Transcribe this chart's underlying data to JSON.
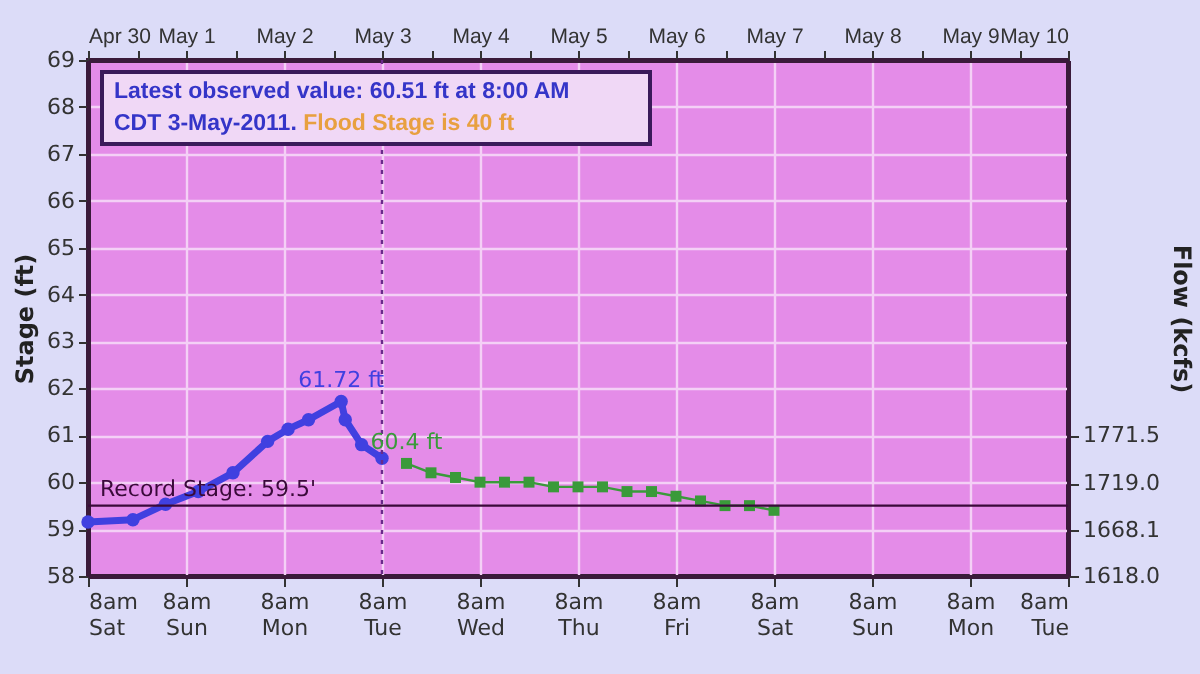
{
  "chart_data": {
    "type": "line",
    "xlabel": null,
    "ylabel": "Stage (ft)",
    "y2label": "Flow (kcfs)",
    "annotations": [
      "Latest observed value: 60.51 ft at 8:00 AM",
      "CDT 3-May-2011.",
      "Flood Stage is 40 ft",
      {
        "text": "61.72 ft",
        "x": "2011-05-02T22:00",
        "y": 61.72
      },
      {
        "text": "60.4 ft",
        "x": "2011-05-03T14:00",
        "y": 60.4
      }
    ],
    "series": [
      {
        "type": "line",
        "color": "#4040e0",
        "marker": "circle",
        "x": [
          "2011-04-30T08:00",
          "2011-04-30T19:00",
          "2011-05-01T03:00",
          "2011-05-01T11:00",
          "2011-05-01T19:30",
          "2011-05-02T04:00",
          "2011-05-02T09:00",
          "2011-05-02T14:00",
          "2011-05-02T22:00",
          "2011-05-02T23:00",
          "2011-05-03T03:00",
          "2011-05-03T08:00"
        ],
        "values": [
          59.15,
          59.2,
          59.53,
          59.8,
          60.2,
          60.87,
          61.13,
          61.33,
          61.72,
          61.33,
          60.8,
          60.51
        ]
      },
      {
        "type": "line",
        "color": "#3a9a3a",
        "marker": "square",
        "x": [
          "2011-05-03T14:00",
          "2011-05-03T20:00",
          "2011-05-04T02:00",
          "2011-05-04T08:00",
          "2011-05-04T14:00",
          "2011-05-04T20:00",
          "2011-05-05T02:00",
          "2011-05-05T08:00",
          "2011-05-05T14:00",
          "2011-05-05T20:00",
          "2011-05-06T02:00",
          "2011-05-06T08:00",
          "2011-05-06T14:00",
          "2011-05-06T20:00",
          "2011-05-07T02:00",
          "2011-05-07T08:00"
        ],
        "values": [
          60.4,
          60.2,
          60.1,
          60.0,
          60.0,
          60.0,
          59.9,
          59.9,
          59.9,
          59.8,
          59.8,
          59.7,
          59.6,
          59.5,
          59.5,
          59.4
        ]
      }
    ],
    "xlim": [
      "2011-04-30T08:00",
      "2011-05-10T08:00"
    ],
    "xticks": [
      {
        "value": "2011-04-30T08:00",
        "label": "8am\nSat"
      },
      {
        "value": "2011-04-30T20:00",
        "label": null
      },
      {
        "value": "2011-05-01T08:00",
        "label": "8am\nSun"
      },
      {
        "value": "2011-05-01T20:00",
        "label": null
      },
      {
        "value": "2011-05-02T08:00",
        "label": "8am\nMon"
      },
      {
        "value": "2011-05-02T20:00",
        "label": null
      },
      {
        "value": "2011-05-03T08:00",
        "label": "8am\nTue"
      },
      {
        "value": "2011-05-03T20:00",
        "label": null
      },
      {
        "value": "2011-05-04T08:00",
        "label": "8am\nWed"
      },
      {
        "value": "2011-05-04T20:00",
        "label": null
      },
      {
        "value": "2011-05-05T08:00",
        "label": "8am\nThu"
      },
      {
        "value": "2011-05-05T20:00",
        "label": null
      },
      {
        "value": "2011-05-06T08:00",
        "label": "8am\nFri"
      },
      {
        "value": "2011-05-06T20:00",
        "label": null
      },
      {
        "value": "2011-05-07T08:00",
        "label": "8am\nSat"
      },
      {
        "value": "2011-05-07T20:00",
        "label": null
      },
      {
        "value": "2011-05-08T08:00",
        "label": "8am\nSun"
      },
      {
        "value": "2011-05-08T20:00",
        "label": null
      },
      {
        "value": "2011-05-09T08:00",
        "label": "8am\nMon"
      },
      {
        "value": "2011-05-09T20:00",
        "label": null
      },
      {
        "value": "2011-05-10T08:00",
        "label": "8am\nTue"
      }
    ],
    "x2lim": [
      "2011-04-30T08:00",
      "2011-05-10T08:00"
    ],
    "x2ticks": [
      {
        "value": "2011-04-30T08:00",
        "label": "Apr 30"
      },
      {
        "value": "2011-04-30T20:00",
        "label": null
      },
      {
        "value": "2011-05-01T08:00",
        "label": "May 1"
      },
      {
        "value": "2011-05-01T20:00",
        "label": null
      },
      {
        "value": "2011-05-02T08:00",
        "label": "May 2"
      },
      {
        "value": "2011-05-02T20:00",
        "label": null
      },
      {
        "value": "2011-05-03T08:00",
        "label": "May 3"
      },
      {
        "value": "2011-05-03T20:00",
        "label": null
      },
      {
        "value": "2011-05-04T08:00",
        "label": "May 4"
      },
      {
        "value": "2011-05-04T20:00",
        "label": null
      },
      {
        "value": "2011-05-05T08:00",
        "label": "May 5"
      },
      {
        "value": "2011-05-05T20:00",
        "label": null
      },
      {
        "value": "2011-05-06T08:00",
        "label": "May 6"
      },
      {
        "value": "2011-05-06T20:00",
        "label": null
      },
      {
        "value": "2011-05-07T08:00",
        "label": "May 7"
      },
      {
        "value": "2011-05-07T20:00",
        "label": null
      },
      {
        "value": "2011-05-08T08:00",
        "label": "May 8"
      },
      {
        "value": "2011-05-08T20:00",
        "label": null
      },
      {
        "value": "2011-05-09T08:00",
        "label": "May 9"
      },
      {
        "value": "2011-05-09T20:00",
        "label": null
      },
      {
        "value": "2011-05-10T08:00",
        "label": "May 10"
      }
    ],
    "ylim": [
      58,
      69
    ],
    "yticks": [
      58,
      59,
      60,
      61,
      62,
      63,
      64,
      65,
      66,
      67,
      68,
      69
    ],
    "y2lim": [
      1618.0,
      2180.8
    ],
    "y2ticks": [
      {
        "value": 1618.0,
        "label": "1618.0"
      },
      {
        "value": 1668.1,
        "label": "1668.1"
      },
      {
        "value": 1719.0,
        "label": "1719.0"
      },
      {
        "value": 1771.5,
        "label": "1771.5"
      }
    ],
    "ref_lines": [
      {
        "axis": "y",
        "value": 59.5,
        "label": "Record Stage:  59.5'",
        "color": "#3a0a3a",
        "line_style": "solid"
      },
      {
        "axis": "x",
        "value": "2011-05-03T08:00",
        "label": null,
        "color": "#6a2a8a",
        "line_style": "dotted"
      }
    ],
    "grid": true
  }
}
